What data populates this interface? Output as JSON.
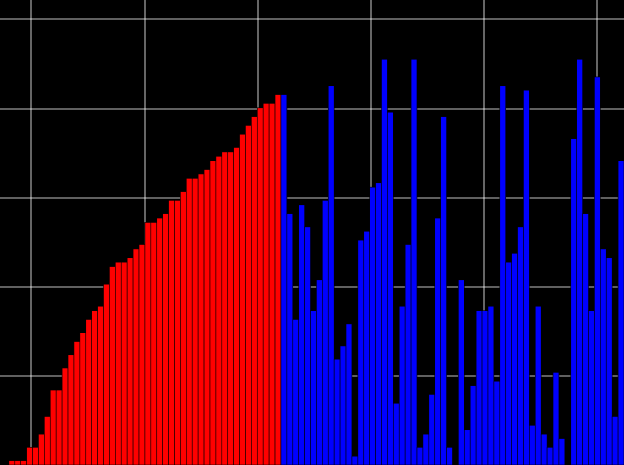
{
  "chart_data": {
    "type": "bar",
    "title": "",
    "xlabel": "",
    "ylabel": "",
    "grid": true,
    "legend": "none",
    "xlim": [
      0,
      105.5
    ],
    "ylim": [
      0,
      100
    ],
    "colors": {
      "background": "#000000",
      "grid": "#ffffff",
      "bar_stroke": "#000000",
      "sorted": "#ff0000",
      "unsorted": "#0000ff"
    },
    "series": [
      {
        "x": [
          0,
          1,
          2,
          3,
          4,
          5,
          6,
          7,
          8,
          9,
          10,
          11,
          12,
          13,
          14,
          15,
          16,
          17,
          18,
          19,
          20,
          21,
          22,
          23,
          24,
          25,
          26,
          27,
          28,
          29,
          30,
          31,
          32,
          33,
          34,
          35,
          36,
          37,
          38,
          39,
          40,
          41,
          42,
          43,
          44,
          45,
          46,
          47
        ],
        "values": [
          0,
          1,
          1,
          1,
          4,
          4,
          7,
          11,
          17,
          17,
          22,
          25,
          28,
          30,
          33,
          35,
          36,
          41,
          45,
          46,
          46,
          47,
          49,
          50,
          55,
          55,
          56,
          57,
          60,
          60,
          62,
          65,
          65,
          66,
          67,
          69,
          70,
          71,
          71,
          72,
          75,
          77,
          79,
          81,
          82,
          82,
          84,
          84
        ],
        "color": "#ff0000"
      },
      {
        "x": [
          47,
          48,
          49,
          50,
          51,
          52,
          53,
          54,
          55,
          56,
          57,
          58,
          59,
          60,
          61,
          62,
          63,
          64,
          65,
          66,
          67,
          68,
          69,
          70,
          71,
          72,
          73,
          74,
          75,
          76,
          77,
          78,
          79,
          80,
          81,
          82,
          83,
          84,
          85,
          86,
          87,
          88,
          89,
          90,
          91,
          92,
          93,
          94,
          95,
          96,
          97,
          98,
          99,
          100,
          101,
          102,
          103,
          104
        ],
        "values": [
          84,
          57,
          33,
          59,
          54,
          35,
          42,
          60,
          86,
          24,
          27,
          32,
          2,
          51,
          53,
          63,
          64,
          92,
          80,
          14,
          36,
          50,
          92,
          4,
          7,
          16,
          56,
          79,
          4,
          0,
          42,
          8,
          18,
          35,
          35,
          36,
          19,
          86,
          46,
          48,
          54,
          85,
          9,
          36,
          7,
          4,
          21,
          6,
          0,
          74,
          92,
          57,
          35,
          88,
          49,
          47,
          11,
          69
        ],
        "color": "#0000ff"
      }
    ]
  }
}
